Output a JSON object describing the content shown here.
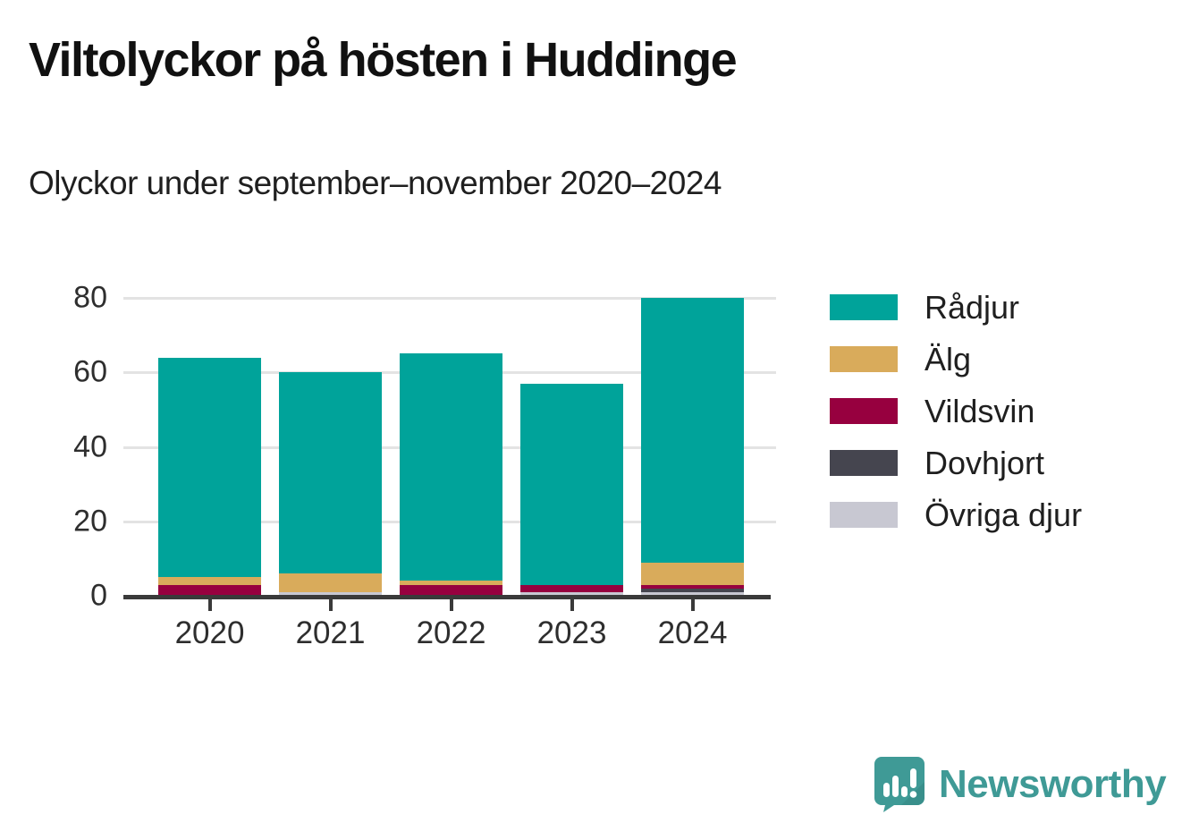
{
  "header": {
    "title": "Viltolyckor på hösten i Huddinge",
    "subtitle": "Olyckor under september–november 2020–2024"
  },
  "chart_data": {
    "type": "bar",
    "stacked": true,
    "title": "Viltolyckor på hösten i Huddinge",
    "subtitle": "Olyckor under september–november 2020–2024",
    "categories": [
      "2020",
      "2021",
      "2022",
      "2023",
      "2024"
    ],
    "series": [
      {
        "name": "Rådjur",
        "color": "#00A39A",
        "values": [
          59,
          54,
          61,
          54,
          71
        ]
      },
      {
        "name": "Älg",
        "color": "#D9AB5B",
        "values": [
          2,
          5,
          1,
          0,
          6
        ]
      },
      {
        "name": "Vildsvin",
        "color": "#97003F",
        "values": [
          3,
          0,
          3,
          2,
          1
        ]
      },
      {
        "name": "Dovhjort",
        "color": "#45454F",
        "values": [
          0,
          0,
          0,
          0,
          1
        ]
      },
      {
        "name": "Övriga djur",
        "color": "#C8C8D2",
        "values": [
          0,
          1,
          0,
          1,
          1
        ]
      }
    ],
    "stack_order": "last_series_at_bottom",
    "totals": [
      64,
      60,
      65,
      57,
      80
    ],
    "xlabel": "",
    "ylabel": "",
    "ylim": [
      0,
      80
    ],
    "yticks": [
      0,
      20,
      40,
      60,
      80
    ],
    "grid": "horizontal",
    "legend_position": "right"
  },
  "colors": {
    "axis": "#3A3A3A",
    "gridline": "#E3E3E3",
    "tick_text": "#2E2E2E",
    "title_text": "#111111"
  },
  "branding": {
    "logo_text": "Newsworthy",
    "brand_color": "#3F9A96",
    "logo_icon": "speech-bubble-bar-chart-icon"
  }
}
